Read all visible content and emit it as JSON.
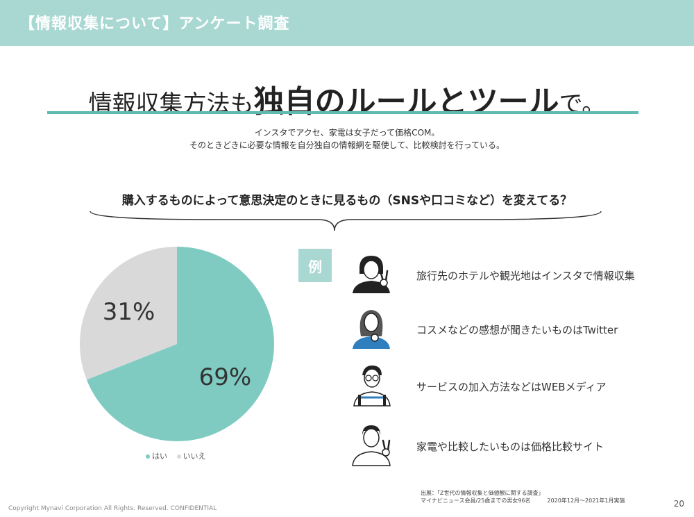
{
  "header": {
    "title": "【情報収集について】アンケート調査",
    "bg_color": "#a9d8d3"
  },
  "headline": {
    "part1": "情報収集方法も",
    "emphasis": "独自のルールとツール",
    "part2": "で。"
  },
  "subtitle": {
    "line1": "インスタでアクセ、家電は女子だって価格COM。",
    "line2": "そのときどきに必要な情報を自分独自の情報網を駆使して、比較検討を行っている。"
  },
  "question": "購入するものによって意思決定のときに見るもの（SNSや口コミなど）を変えてる？",
  "chart_data": {
    "type": "pie",
    "categories": [
      "はい",
      "いいえ"
    ],
    "values": [
      69,
      31
    ],
    "labels": [
      "69%",
      "31%"
    ],
    "colors": [
      "#7fcbc2",
      "#d9d9d9"
    ]
  },
  "legend": {
    "yes": "はい",
    "no": "いいえ"
  },
  "examples": {
    "badge": "例",
    "items": [
      {
        "text": "旅行先のホテルや観光地はインスタで情報収集",
        "icon": "woman-peace-sign-icon"
      },
      {
        "text": "コスメなどの感想が聞きたいものはTwitter",
        "icon": "woman-long-hair-icon"
      },
      {
        "text": "サービスの加入方法などはWEBメディア",
        "icon": "man-glasses-icon"
      },
      {
        "text": "家電や比較したいものは価格比較サイト",
        "icon": "man-peace-sign-icon"
      }
    ]
  },
  "source": {
    "line1": "出展：「Z世代の情報収集と価値観に関する調査」",
    "line2": "マイナビニュース会員/25歳までの男女96名",
    "date": "2020年12月～2021年1月実施"
  },
  "footer": {
    "copyright": "Copyright   Mynavi Corporation All Rights. Reserved. CONFIDENTIAL",
    "page": "20"
  }
}
